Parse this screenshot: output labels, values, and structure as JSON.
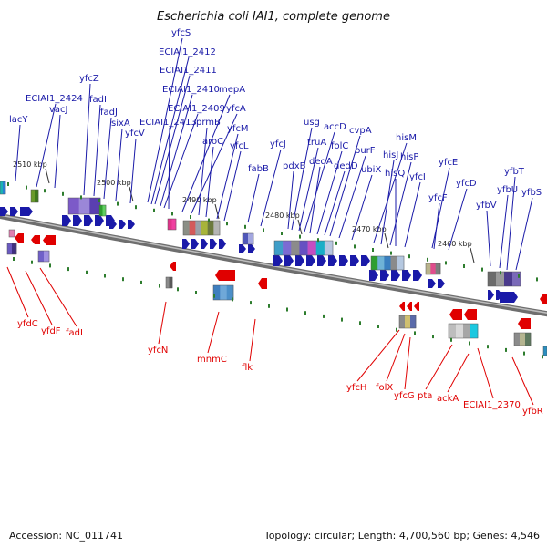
{
  "title": "Escherichia coli IAI1, complete genome",
  "footer": {
    "accession": "Accession: NC_011741",
    "summary": "Topology: circular; Length: 4,700,560 bp; Genes: 4,546"
  },
  "colors": {
    "forward": "#1a1aa8",
    "reverse": "#e00000",
    "marker": "#2e7d2e",
    "backbone": "#8a8a8a"
  },
  "ticks": [
    {
      "label": "2510 kbp"
    },
    {
      "label": "2500 kbp"
    },
    {
      "label": "2490 kbp"
    },
    {
      "label": "2480 kbp"
    },
    {
      "label": "2470 kbp"
    },
    {
      "label": "2460 kbp"
    }
  ],
  "forward_genes": [
    "lacY",
    "ECIAI1_2424",
    "vacJ",
    "yfcZ",
    "fadI",
    "fadJ",
    "sixA",
    "yfcV",
    "yfcS",
    "ECIAI1_2412",
    "ECIAI1_2411",
    "ECIAI1_2410",
    "ECIAI1_2409",
    "ECIAI1_2413",
    "mepA",
    "yfcA",
    "prmB",
    "aroC",
    "yfcM",
    "yfcL",
    "yfcJ",
    "fabB",
    "usg",
    "accD",
    "truA",
    "pdxB",
    "dedA",
    "folC",
    "dedD",
    "cvpA",
    "purF",
    "ubiX",
    "hisM",
    "hisJ",
    "hisP",
    "hisQ",
    "yfcI",
    "yfcE",
    "yfcF",
    "yfcD",
    "yfbT",
    "yfbU",
    "yfbV",
    "yfbS"
  ],
  "reverse_genes": [
    "yfdC",
    "yfdF",
    "fadL",
    "yfcN",
    "mnmC",
    "flk",
    "yfcH",
    "folX",
    "yfcG",
    "pta",
    "ackA",
    "ECIAI1_2370",
    "yfbR"
  ]
}
